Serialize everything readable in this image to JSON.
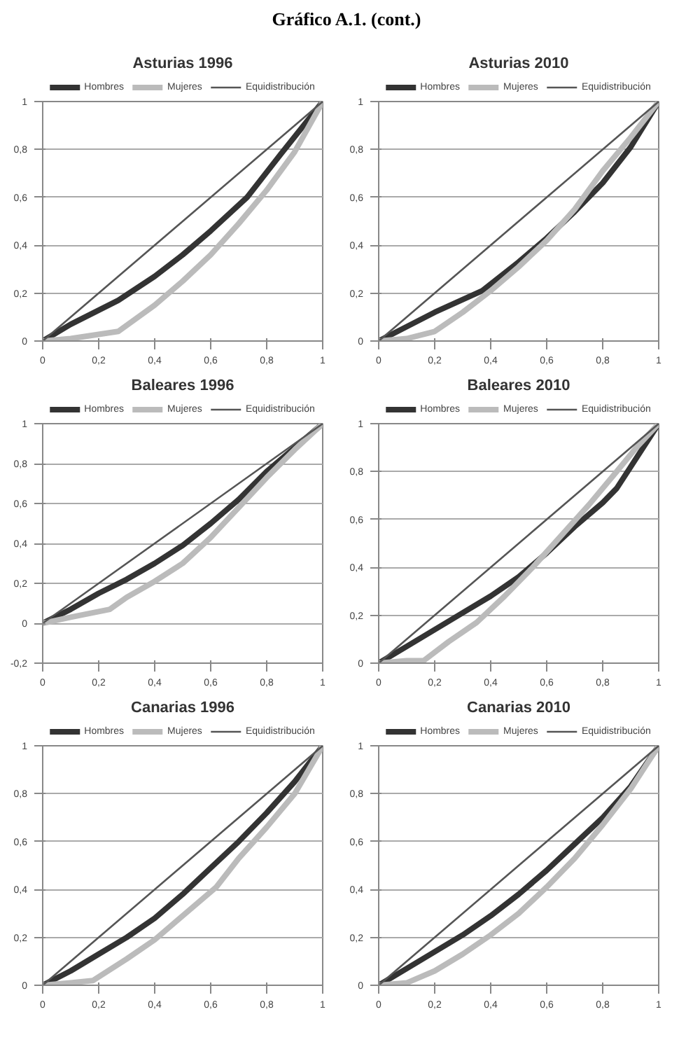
{
  "chart_data": [
    {
      "type": "line",
      "title": "Asturias 1996",
      "annotations": [
        "Gráfico A.1. (cont.)"
      ],
      "xlim": [
        0,
        1
      ],
      "ylim": [
        0,
        1
      ],
      "xticks": [
        0,
        {
          "value": 0.2,
          "label": "0,2"
        },
        {
          "value": 0.4,
          "label": "0,4"
        },
        {
          "value": 0.6,
          "label": "0,6"
        },
        {
          "value": 0.8,
          "label": "0,8"
        },
        1
      ],
      "yticks": [
        0,
        {
          "value": 0.2,
          "label": "0,2"
        },
        {
          "value": 0.4,
          "label": "0,4"
        },
        {
          "value": 0.6,
          "label": "0,6"
        },
        {
          "value": 0.8,
          "label": "0,8"
        },
        1
      ],
      "grid": "y",
      "legend": "top",
      "series": [
        {
          "name": "Hombres",
          "color": "#333333",
          "x": [
            0,
            0.1,
            0.27,
            0.4,
            0.5,
            0.6,
            0.73,
            0.85,
            1
          ],
          "values": [
            0,
            0.07,
            0.17,
            0.27,
            0.36,
            0.46,
            0.6,
            0.78,
            1
          ]
        },
        {
          "name": "Mujeres",
          "color": "#bbbbbb",
          "x": [
            0,
            0.1,
            0.27,
            0.4,
            0.5,
            0.6,
            0.7,
            0.8,
            0.9,
            1
          ],
          "values": [
            0,
            0.01,
            0.04,
            0.15,
            0.25,
            0.36,
            0.49,
            0.63,
            0.79,
            1
          ]
        },
        {
          "name": "Equidistribución",
          "color": "#555555",
          "x": [
            0,
            1
          ],
          "values": [
            0,
            1
          ]
        }
      ]
    },
    {
      "type": "line",
      "title": "Asturias 2010",
      "xlim": [
        0,
        1
      ],
      "ylim": [
        0,
        1
      ],
      "xticks": [
        0,
        {
          "value": 0.2,
          "label": "0,2"
        },
        {
          "value": 0.4,
          "label": "0,4"
        },
        {
          "value": 0.6,
          "label": "0,6"
        },
        {
          "value": 0.8,
          "label": "0,8"
        },
        1
      ],
      "yticks": [
        0,
        {
          "value": 0.2,
          "label": "0,2"
        },
        {
          "value": 0.4,
          "label": "0,4"
        },
        {
          "value": 0.6,
          "label": "0,6"
        },
        {
          "value": 0.8,
          "label": "0,8"
        },
        1
      ],
      "grid": "y",
      "legend": "top",
      "series": [
        {
          "name": "Hombres",
          "color": "#333333",
          "x": [
            0,
            0.1,
            0.2,
            0.37,
            0.5,
            0.6,
            0.7,
            0.8,
            0.9,
            1
          ],
          "values": [
            0,
            0.06,
            0.12,
            0.21,
            0.33,
            0.43,
            0.54,
            0.66,
            0.81,
            1
          ]
        },
        {
          "name": "Mujeres",
          "color": "#bbbbbb",
          "x": [
            0,
            0.1,
            0.2,
            0.3,
            0.4,
            0.5,
            0.6,
            0.7,
            0.8,
            0.9,
            1
          ],
          "values": [
            0,
            0.01,
            0.04,
            0.12,
            0.21,
            0.31,
            0.42,
            0.55,
            0.71,
            0.85,
            1
          ]
        },
        {
          "name": "Equidistribución",
          "color": "#555555",
          "x": [
            0,
            1
          ],
          "values": [
            0,
            1
          ]
        }
      ]
    },
    {
      "type": "line",
      "title": "Baleares 1996",
      "xlim": [
        0,
        1
      ],
      "ylim": [
        -0.2,
        1
      ],
      "xticks": [
        0,
        {
          "value": 0.2,
          "label": "0,2"
        },
        {
          "value": 0.4,
          "label": "0,4"
        },
        {
          "value": 0.6,
          "label": "0,6"
        },
        {
          "value": 0.8,
          "label": "0,8"
        },
        1
      ],
      "yticks": [
        {
          "value": -0.2,
          "label": "-0,2"
        },
        0,
        {
          "value": 0.2,
          "label": "0,2"
        },
        {
          "value": 0.4,
          "label": "0,4"
        },
        {
          "value": 0.6,
          "label": "0,6"
        },
        {
          "value": 0.8,
          "label": "0,8"
        },
        1
      ],
      "grid": "y",
      "legend": "top",
      "series": [
        {
          "name": "Hombres",
          "color": "#333333",
          "x": [
            0,
            0.1,
            0.2,
            0.3,
            0.4,
            0.5,
            0.6,
            0.7,
            0.8,
            0.9,
            1
          ],
          "values": [
            0,
            0.07,
            0.15,
            0.22,
            0.3,
            0.39,
            0.5,
            0.62,
            0.76,
            0.88,
            1
          ]
        },
        {
          "name": "Mujeres",
          "color": "#bbbbbb",
          "x": [
            0,
            0.1,
            0.24,
            0.3,
            0.4,
            0.5,
            0.6,
            0.7,
            0.8,
            0.9,
            1
          ],
          "values": [
            0,
            0.03,
            0.07,
            0.13,
            0.21,
            0.3,
            0.43,
            0.58,
            0.73,
            0.87,
            1
          ]
        },
        {
          "name": "Equidistribución",
          "color": "#555555",
          "x": [
            0,
            1
          ],
          "values": [
            0,
            1
          ]
        }
      ]
    },
    {
      "type": "line",
      "title": "Baleares 2010",
      "xlim": [
        0,
        1
      ],
      "ylim": [
        0,
        1
      ],
      "xticks": [
        0,
        {
          "value": 0.2,
          "label": "0,2"
        },
        {
          "value": 0.4,
          "label": "0,4"
        },
        {
          "value": 0.6,
          "label": "0,6"
        },
        {
          "value": 0.8,
          "label": "0,8"
        },
        1
      ],
      "yticks": [
        0,
        {
          "value": 0.2,
          "label": "0,2"
        },
        {
          "value": 0.4,
          "label": "0,4"
        },
        {
          "value": 0.6,
          "label": "0,6"
        },
        {
          "value": 0.8,
          "label": "0,8"
        },
        1
      ],
      "grid": "y",
      "legend": "top",
      "series": [
        {
          "name": "Hombres",
          "color": "#333333",
          "x": [
            0,
            0.1,
            0.2,
            0.3,
            0.4,
            0.5,
            0.6,
            0.7,
            0.8,
            0.85,
            0.9,
            1
          ],
          "values": [
            0,
            0.07,
            0.14,
            0.21,
            0.28,
            0.36,
            0.46,
            0.57,
            0.67,
            0.73,
            0.82,
            1
          ]
        },
        {
          "name": "Mujeres",
          "color": "#bbbbbb",
          "x": [
            0,
            0.1,
            0.16,
            0.25,
            0.35,
            0.45,
            0.55,
            0.65,
            0.75,
            0.85,
            0.92,
            1
          ],
          "values": [
            0,
            0.01,
            0.01,
            0.09,
            0.17,
            0.28,
            0.4,
            0.53,
            0.66,
            0.8,
            0.9,
            1
          ]
        },
        {
          "name": "Equidistribución",
          "color": "#555555",
          "x": [
            0,
            1
          ],
          "values": [
            0,
            1
          ]
        }
      ]
    },
    {
      "type": "line",
      "title": "Canarias 1996",
      "xlim": [
        0,
        1
      ],
      "ylim": [
        0,
        1
      ],
      "xticks": [
        0,
        {
          "value": 0.2,
          "label": "0,2"
        },
        {
          "value": 0.4,
          "label": "0,4"
        },
        {
          "value": 0.6,
          "label": "0,6"
        },
        {
          "value": 0.8,
          "label": "0,8"
        },
        1
      ],
      "yticks": [
        0,
        {
          "value": 0.2,
          "label": "0,2"
        },
        {
          "value": 0.4,
          "label": "0,4"
        },
        {
          "value": 0.6,
          "label": "0,6"
        },
        {
          "value": 0.8,
          "label": "0,8"
        },
        1
      ],
      "grid": "y",
      "legend": "top",
      "series": [
        {
          "name": "Hombres",
          "color": "#333333",
          "x": [
            0,
            0.1,
            0.2,
            0.3,
            0.4,
            0.5,
            0.6,
            0.7,
            0.8,
            0.9,
            1
          ],
          "values": [
            0,
            0.06,
            0.13,
            0.2,
            0.28,
            0.38,
            0.49,
            0.6,
            0.72,
            0.85,
            1
          ]
        },
        {
          "name": "Mujeres",
          "color": "#bbbbbb",
          "x": [
            0,
            0.1,
            0.18,
            0.3,
            0.4,
            0.5,
            0.62,
            0.7,
            0.8,
            0.9,
            1
          ],
          "values": [
            0,
            0.01,
            0.02,
            0.11,
            0.19,
            0.29,
            0.41,
            0.53,
            0.66,
            0.8,
            1
          ]
        },
        {
          "name": "Equidistribución",
          "color": "#555555",
          "x": [
            0,
            1
          ],
          "values": [
            0,
            1
          ]
        }
      ]
    },
    {
      "type": "line",
      "title": "Canarias 2010",
      "xlim": [
        0,
        1
      ],
      "ylim": [
        0,
        1
      ],
      "xticks": [
        0,
        {
          "value": 0.2,
          "label": "0,2"
        },
        {
          "value": 0.4,
          "label": "0,4"
        },
        {
          "value": 0.6,
          "label": "0,6"
        },
        {
          "value": 0.8,
          "label": "0,8"
        },
        1
      ],
      "yticks": [
        0,
        {
          "value": 0.2,
          "label": "0,2"
        },
        {
          "value": 0.4,
          "label": "0,4"
        },
        {
          "value": 0.6,
          "label": "0,6"
        },
        {
          "value": 0.8,
          "label": "0,8"
        },
        1
      ],
      "grid": "y",
      "legend": "top",
      "series": [
        {
          "name": "Hombres",
          "color": "#333333",
          "x": [
            0,
            0.1,
            0.2,
            0.3,
            0.4,
            0.5,
            0.6,
            0.7,
            0.8,
            0.9,
            1
          ],
          "values": [
            0,
            0.07,
            0.14,
            0.21,
            0.29,
            0.38,
            0.48,
            0.59,
            0.7,
            0.83,
            1
          ]
        },
        {
          "name": "Mujeres",
          "color": "#bbbbbb",
          "x": [
            0,
            0.1,
            0.2,
            0.3,
            0.4,
            0.5,
            0.6,
            0.7,
            0.8,
            0.9,
            1
          ],
          "values": [
            0,
            0.01,
            0.06,
            0.13,
            0.21,
            0.3,
            0.41,
            0.53,
            0.67,
            0.82,
            1
          ]
        },
        {
          "name": "Equidistribución",
          "color": "#555555",
          "x": [
            0,
            1
          ],
          "values": [
            0,
            1
          ]
        }
      ]
    }
  ]
}
